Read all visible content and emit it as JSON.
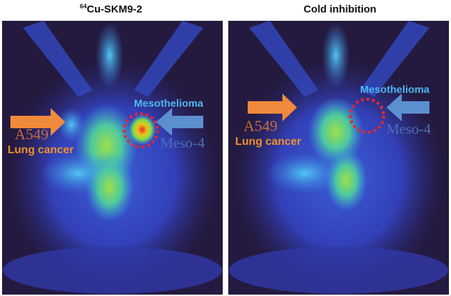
{
  "panels": [
    {
      "title_sup": "64",
      "title": "Cu-SKM9-2",
      "left_label_1": "A549",
      "left_label_2": "Lung cancer",
      "right_label_1": "Mesothelioma",
      "right_label_2": "Meso-4",
      "tumor_uptake": "high"
    },
    {
      "title": "Cold inhibition",
      "left_label_1": "A549",
      "left_label_2": "Lung cancer",
      "right_label_1": "Mesothelioma",
      "right_label_2": "Meso-4",
      "tumor_uptake": "none"
    }
  ],
  "colors": {
    "left_arrow": "#f08a3c",
    "right_arrow": "#5b8fd0",
    "mesothelioma_text": "#4fb6f0",
    "meso4_text": "#4a6fb5",
    "lung_text": "#f0912a",
    "a549_text": "#c86a3a",
    "circle": "#e8262b"
  }
}
